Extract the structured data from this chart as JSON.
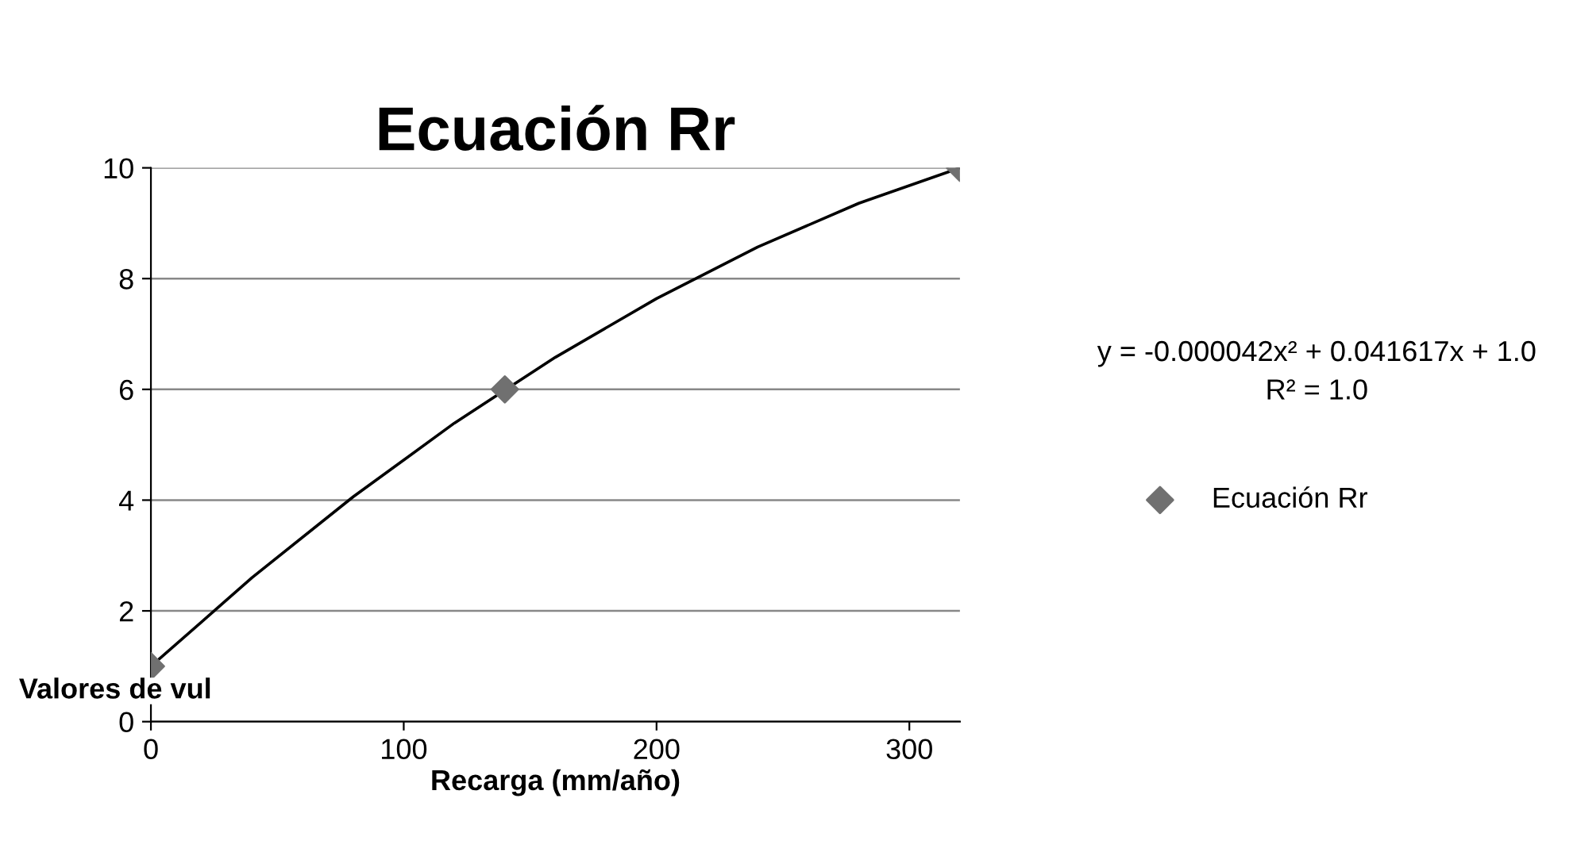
{
  "chart_data": {
    "type": "scatter",
    "title": "Ecuación Rr",
    "xlabel": "Recarga (mm/año)",
    "ylabel": "Valores de vul",
    "series": [
      {
        "name": "Ecuación Rr",
        "color": "#707070",
        "marker": "diamond",
        "x": [
          0,
          140,
          320
        ],
        "values": [
          1,
          6,
          10
        ]
      },
      {
        "type": "line",
        "color": "#000000",
        "marker": "none",
        "line_style": "solid",
        "x": [
          0,
          40,
          80,
          120,
          160,
          200,
          240,
          280,
          320
        ],
        "values": [
          1,
          2.6,
          4.06,
          5.39,
          6.58,
          7.64,
          8.57,
          9.36,
          10.0
        ]
      }
    ],
    "annotations": [
      "y = -0.000042x² + 0.041617x + 1.0",
      "R² = 1.0"
    ],
    "xlim": [
      0,
      320
    ],
    "xticks": [
      0,
      100,
      200,
      300
    ],
    "ylim": [
      0,
      10
    ],
    "yticks": [
      0,
      2,
      4,
      6,
      8,
      10
    ],
    "grid": "y",
    "legend": "right"
  }
}
